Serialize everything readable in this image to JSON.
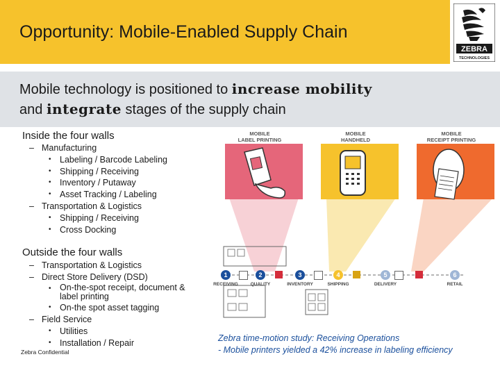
{
  "header": {
    "title": "Opportunity: Mobile-Enabled Supply Chain",
    "logo_text": "ZEBRA",
    "logo_sub": "TECHNOLOGIES"
  },
  "subtitle": {
    "line1_prefix": "Mobile technology is positioned to ",
    "line1_bold": "increase mobility",
    "line2_prefix": "and ",
    "line2_bold": "integrate",
    "line2_suffix": " stages of the supply chain"
  },
  "inside": {
    "heading": "Inside the four walls",
    "items": [
      {
        "label": "Manufacturing",
        "children": [
          "Labeling / Barcode Labeling",
          "Shipping / Receiving",
          "Inventory / Putaway",
          "Asset Tracking / Labeling"
        ]
      },
      {
        "label": "Transportation & Logistics",
        "children": [
          "Shipping / Receiving",
          "Cross Docking"
        ]
      }
    ]
  },
  "outside": {
    "heading": "Outside the four walls",
    "items": [
      {
        "label": "Transportation & Logistics",
        "children": []
      },
      {
        "label": "Direct Store Delivery (DSD)",
        "children": [
          "On-the-spot receipt, document & label printing",
          "On-the spot asset tagging"
        ]
      },
      {
        "label": "Field Service",
        "children": [
          "Utilities",
          "Installation / Repair"
        ]
      }
    ]
  },
  "footer": {
    "confidential": "Zebra Confidential"
  },
  "tiles": {
    "label_printing": "MOBILE\nLABEL PRINTING",
    "handheld": "MOBILE\nHANDHELD",
    "receipt_printing": "MOBILE\nRECEIPT PRINTING"
  },
  "steps": [
    {
      "num": "1",
      "label": "RECEIVING",
      "color": "#1a4f9c"
    },
    {
      "num": "2",
      "label": "QUALITY",
      "color": "#1a4f9c"
    },
    {
      "num": "3",
      "label": "INVENTORY",
      "color": "#1a4f9c"
    },
    {
      "num": "4",
      "label": "SHIPPING",
      "color": "#f6c22c"
    },
    {
      "num": "5",
      "label": "DELIVERY",
      "color": "#9fb6d6"
    },
    {
      "num": "6",
      "label": "RETAIL",
      "color": "#9fb6d6"
    }
  ],
  "note": {
    "line1": "Zebra time-motion study:  Receiving Operations",
    "line2": "- Mobile printers yielded a 42% increase in labeling efficiency"
  },
  "colors": {
    "yellow": "#f6c22c",
    "grey_band": "#dfe2e6",
    "pink": "#e5667a",
    "orange": "#ef6a2e",
    "blue": "#1a4f9c"
  }
}
